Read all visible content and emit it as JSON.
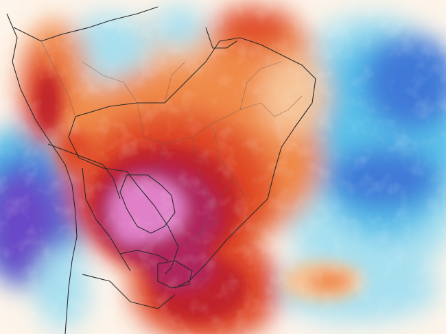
{
  "map": {
    "palette": {
      "very_hot": "#e080c8",
      "hot_magenta": "#b0285c",
      "hot_dark": "#c0202c",
      "warm_red": "#e04a28",
      "warm_orange": "#f08a48",
      "mild_peach": "#f6c498",
      "neutral": "#fdf4ea",
      "cool_light": "#a8e0f0",
      "cool_cyan": "#58c0e8",
      "cold_blue": "#3f7ad8",
      "very_cold": "#6a4ac8",
      "border_line": "#2a2a2a",
      "state_line": "#6b5a52"
    }
  }
}
